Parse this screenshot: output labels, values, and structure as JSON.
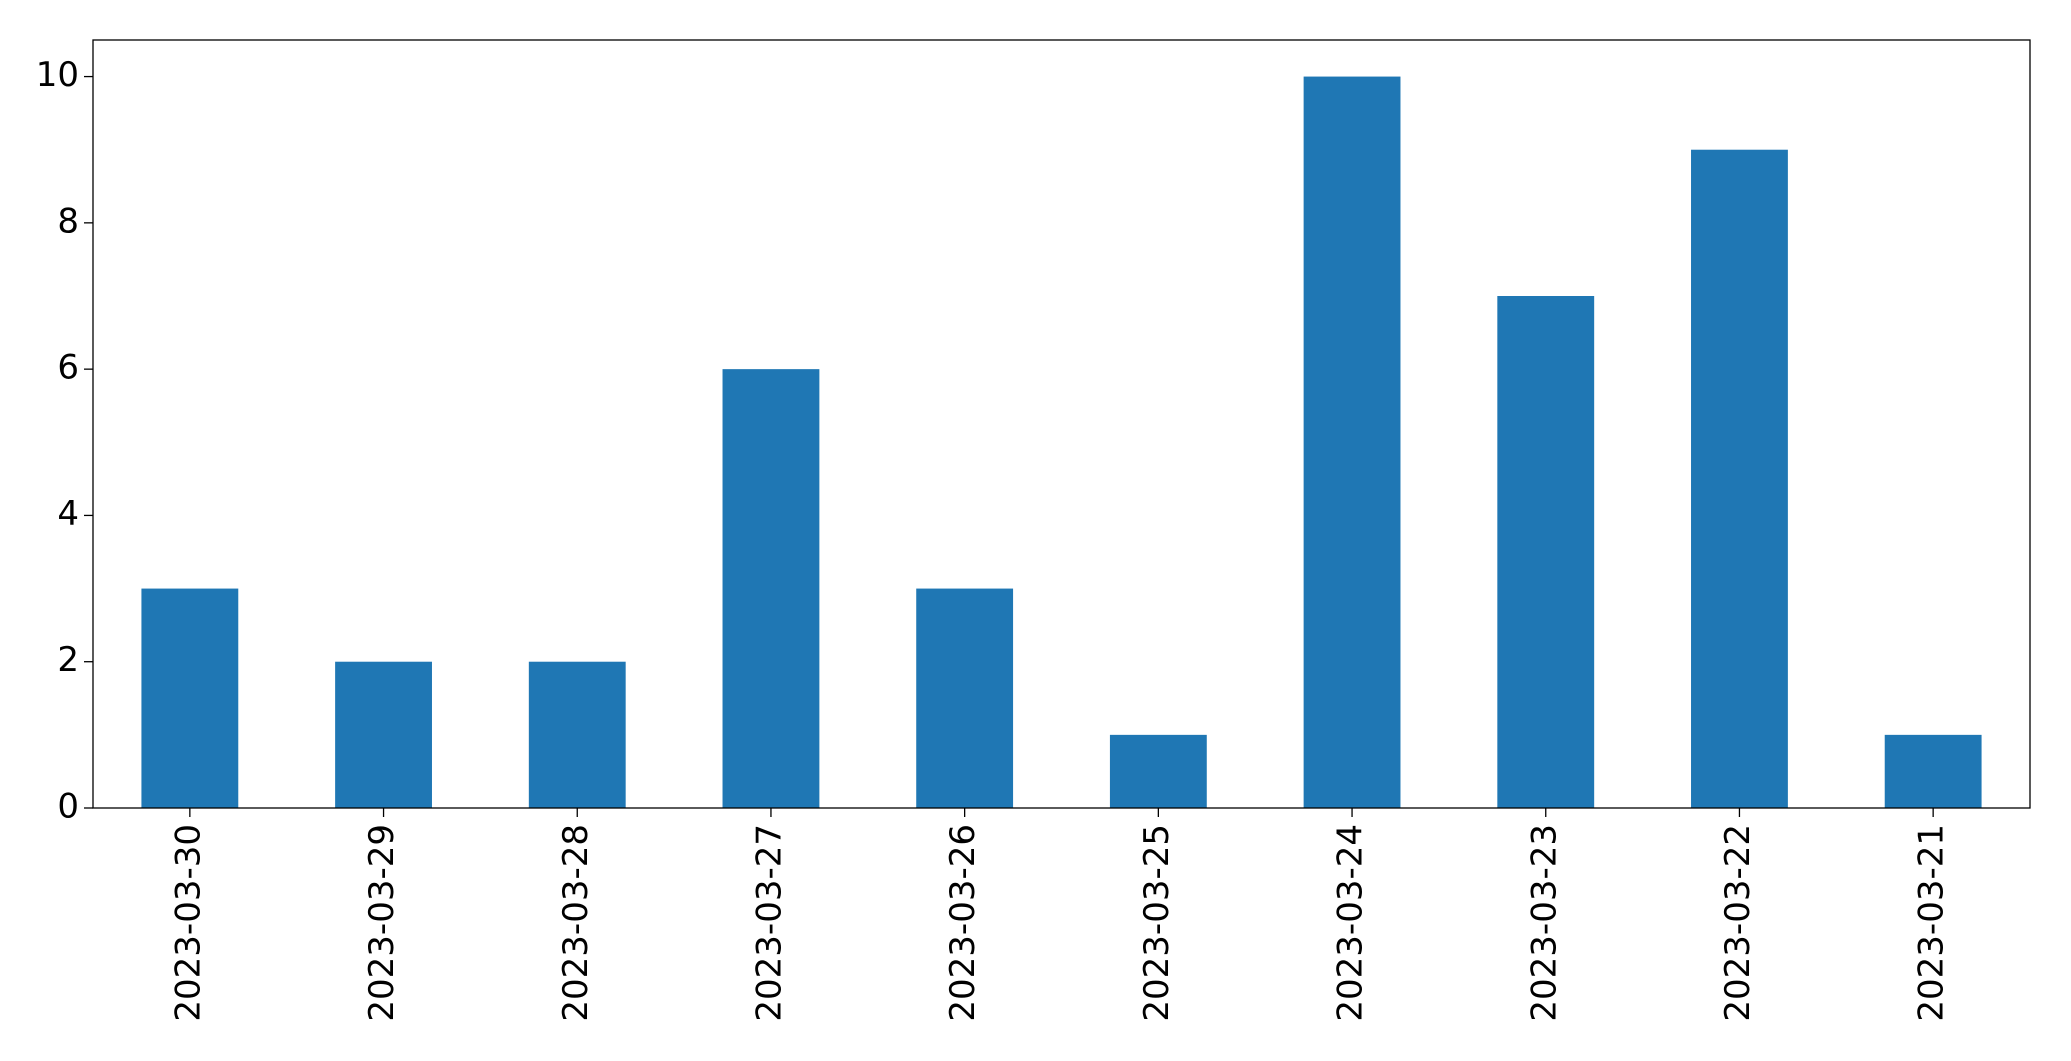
{
  "chart_data": {
    "type": "bar",
    "categories": [
      "2023-03-30",
      "2023-03-29",
      "2023-03-28",
      "2023-03-27",
      "2023-03-26",
      "2023-03-25",
      "2023-03-24",
      "2023-03-23",
      "2023-03-22",
      "2023-03-21"
    ],
    "values": [
      3,
      2,
      2,
      6,
      3,
      1,
      10,
      7,
      9,
      1
    ],
    "color": "#1f77b4",
    "ylim": [
      0,
      10.5
    ],
    "yticks": [
      0,
      2,
      4,
      6,
      8,
      10
    ],
    "grid": false
  }
}
